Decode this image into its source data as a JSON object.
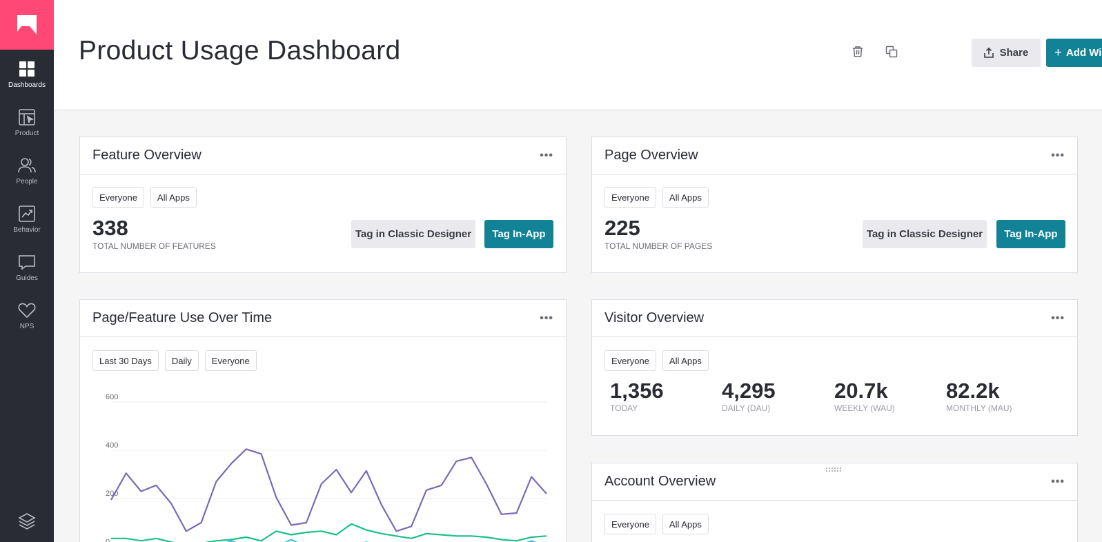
{
  "sidebar": {
    "items": [
      {
        "label": "Dashboards",
        "icon": "dashboards-icon"
      },
      {
        "label": "Product",
        "icon": "product-icon"
      },
      {
        "label": "People",
        "icon": "people-icon"
      },
      {
        "label": "Behavior",
        "icon": "behavior-icon"
      },
      {
        "label": "Guides",
        "icon": "guides-icon"
      },
      {
        "label": "NPS",
        "icon": "nps-icon"
      }
    ]
  },
  "header": {
    "title": "Product Usage Dashboard",
    "share_label": "Share",
    "add_widget_label": "Add Widget"
  },
  "feature_overview": {
    "title": "Feature Overview",
    "chips": [
      "Everyone",
      "All Apps"
    ],
    "value": "338",
    "label": "TOTAL NUMBER OF FEATURES",
    "classic_label": "Tag in Classic Designer",
    "inapp_label": "Tag In-App"
  },
  "page_overview": {
    "title": "Page Overview",
    "chips": [
      "Everyone",
      "All Apps"
    ],
    "value": "225",
    "label": "TOTAL NUMBER OF PAGES",
    "classic_label": "Tag in Classic Designer",
    "inapp_label": "Tag In-App"
  },
  "usage_over_time": {
    "title": "Page/Feature Use Over Time",
    "chips": [
      "Last 30 Days",
      "Daily",
      "Everyone"
    ]
  },
  "visitor_overview": {
    "title": "Visitor Overview",
    "chips": [
      "Everyone",
      "All Apps"
    ],
    "stats": [
      {
        "value": "1,356",
        "label": "TODAY"
      },
      {
        "value": "4,295",
        "label": "DAILY (DAU)"
      },
      {
        "value": "20.7k",
        "label": "WEEKLY (WAU)"
      },
      {
        "value": "82.2k",
        "label": "MONTHLY (MAU)"
      }
    ]
  },
  "account_overview": {
    "title": "Account Overview",
    "chips": [
      "Everyone",
      "All Apps"
    ]
  },
  "chart_data": {
    "type": "line",
    "title": "",
    "xlabel": "",
    "ylabel": "",
    "ylim": [
      0,
      600
    ],
    "yticks": [
      "0",
      "200",
      "400",
      "600"
    ],
    "grid": true,
    "x": [
      1,
      2,
      3,
      4,
      5,
      6,
      7,
      8,
      9,
      10,
      11,
      12,
      13,
      14,
      15,
      16,
      17,
      18,
      19,
      20,
      21,
      22,
      23,
      24,
      25,
      26,
      27,
      28,
      29,
      30
    ],
    "series": [
      {
        "color": "#7b68b8",
        "values": [
          195,
          305,
          230,
          255,
          180,
          65,
          100,
          270,
          345,
          405,
          385,
          205,
          90,
          100,
          260,
          320,
          225,
          315,
          175,
          65,
          85,
          235,
          255,
          355,
          370,
          260,
          135,
          140,
          290,
          220
        ]
      },
      {
        "color": "#1ac187",
        "values": [
          35,
          35,
          25,
          35,
          20,
          8,
          15,
          25,
          30,
          40,
          25,
          65,
          50,
          60,
          65,
          50,
          95,
          70,
          55,
          45,
          35,
          55,
          50,
          45,
          45,
          40,
          30,
          25,
          40,
          45
        ]
      },
      {
        "color": "#3cc4e8",
        "values": [
          0,
          0,
          0,
          0,
          0,
          0,
          0,
          0,
          25,
          0,
          10,
          0,
          30,
          0,
          0,
          10,
          0,
          20,
          0,
          0,
          0,
          5,
          0,
          0,
          0,
          0,
          0,
          0,
          25,
          0
        ]
      }
    ]
  }
}
